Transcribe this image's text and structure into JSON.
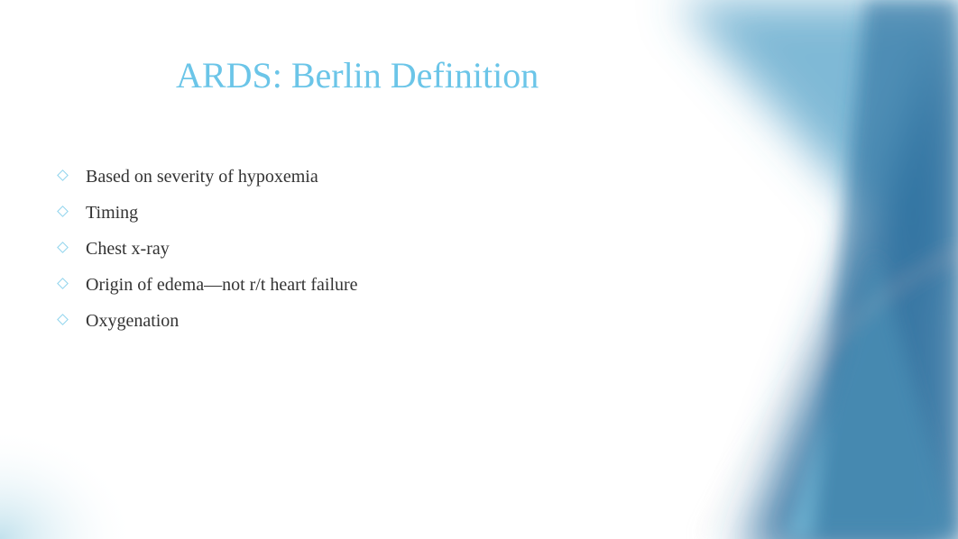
{
  "slide": {
    "title": "ARDS: Berlin Definition",
    "title_color": "#6bc5e8",
    "bullets": [
      "Based on severity of hypoxemia",
      "Timing",
      "Chest x-ray",
      "Origin of edema—not r/t heart failure",
      "Oxygenation"
    ],
    "bullet_marker_color": "#8fd4ed",
    "bullet_text_color": "#333333",
    "background_colors": {
      "triangle_dark": "#2e6f9e",
      "triangle_mid": "#4a9bc4",
      "triangle_light": "#6fb8d6",
      "bottom_left_glow": "#a8d5e5"
    }
  }
}
